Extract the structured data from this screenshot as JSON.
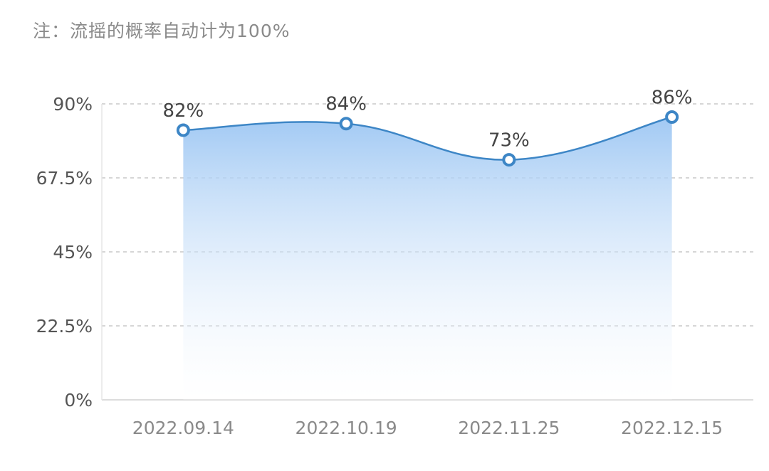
{
  "note": "注：流摇的概率自动计为100%",
  "chart_data": {
    "type": "area",
    "x": [
      "2022.09.14",
      "2022.10.19",
      "2022.11.25",
      "2022.12.15"
    ],
    "series": [
      {
        "values": [
          82,
          84,
          73,
          86
        ],
        "labels": [
          "82%",
          "84%",
          "73%",
          "86%"
        ]
      }
    ],
    "y_ticks": [
      0,
      22.5,
      45,
      67.5,
      90
    ],
    "y_tick_labels": [
      "0%",
      "22.5%",
      "45%",
      "67.5%",
      "90%"
    ],
    "ylim": [
      0,
      90
    ],
    "grid": true,
    "colors": {
      "line": "#3d86c6",
      "fill_top": "#9cc6f3",
      "fill_bottom": "#ffffff",
      "grid": "#c8c8c8",
      "marker_fill": "#ffffff"
    }
  }
}
